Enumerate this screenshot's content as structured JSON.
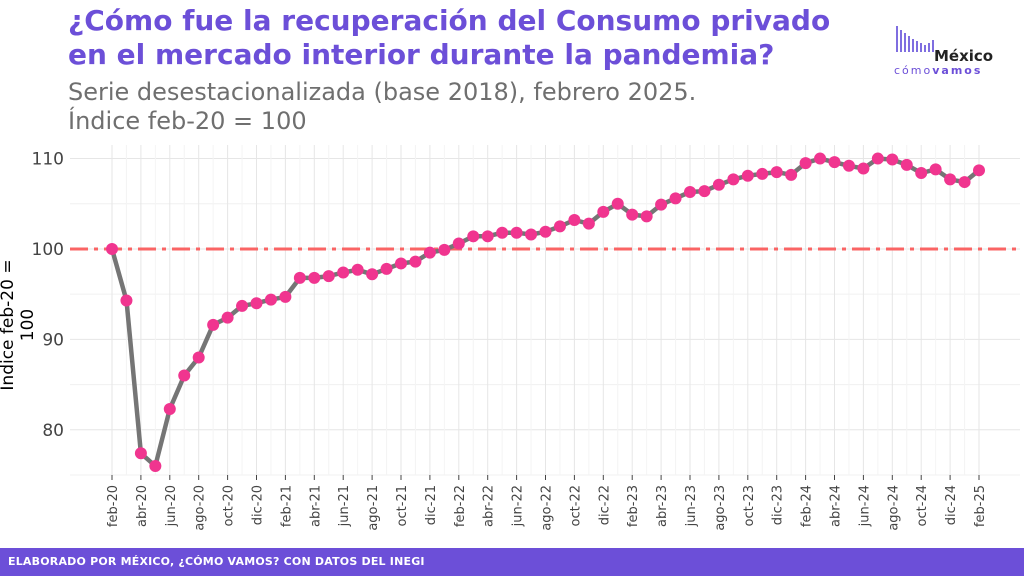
{
  "header": {
    "title": "¿Cómo fue la recuperación del Consumo privado en el mercado interior durante la pandemia?",
    "subtitle_line1": "Serie desestacionalizada (base 2018), febrero 2025.",
    "subtitle_line2": "Índice feb-20 = 100"
  },
  "logo": {
    "word": "México",
    "sub_light": "cómo",
    "sub_bold": "vamos"
  },
  "footer": {
    "text": "ELABORADO POR MÉXICO, ¿CÓMO VAMOS? CON DATOS DEL INEGI"
  },
  "colors": {
    "accent": "#6c4fd8",
    "line": "#757575",
    "points": "#f0358f",
    "reference": "#fa6464"
  },
  "chart_data": {
    "type": "line",
    "title": "¿Cómo fue la recuperación del Consumo privado en el mercado interior durante la pandemia?",
    "ylabel": "Índice feb-20 = 100",
    "xlabel": "",
    "ylim": [
      75,
      111.5
    ],
    "yticks": [
      80,
      90,
      100,
      110
    ],
    "reference_line": 100,
    "grid": true,
    "tick_labels": [
      "feb-20",
      "abr-20",
      "jun-20",
      "ago-20",
      "oct-20",
      "dic-20",
      "feb-21",
      "abr-21",
      "jun-21",
      "ago-21",
      "oct-21",
      "dic-21",
      "feb-22",
      "abr-22",
      "jun-22",
      "ago-22",
      "oct-22",
      "dic-22",
      "feb-23",
      "abr-23",
      "jun-23",
      "ago-23",
      "oct-23",
      "dic-23",
      "feb-24",
      "abr-24",
      "jun-24",
      "ago-24",
      "oct-24",
      "dic-24",
      "feb-25"
    ],
    "x": [
      "feb-20",
      "mar-20",
      "abr-20",
      "may-20",
      "jun-20",
      "jul-20",
      "ago-20",
      "sep-20",
      "oct-20",
      "nov-20",
      "dic-20",
      "ene-21",
      "feb-21",
      "mar-21",
      "abr-21",
      "may-21",
      "jun-21",
      "jul-21",
      "ago-21",
      "sep-21",
      "oct-21",
      "nov-21",
      "dic-21",
      "ene-22",
      "feb-22",
      "mar-22",
      "abr-22",
      "may-22",
      "jun-22",
      "jul-22",
      "ago-22",
      "sep-22",
      "oct-22",
      "nov-22",
      "dic-22",
      "ene-23",
      "feb-23",
      "mar-23",
      "abr-23",
      "may-23",
      "jun-23",
      "jul-23",
      "ago-23",
      "sep-23",
      "oct-23",
      "nov-23",
      "dic-23",
      "ene-24",
      "feb-24",
      "mar-24",
      "abr-24",
      "may-24",
      "jun-24",
      "jul-24",
      "ago-24",
      "sep-24",
      "oct-24",
      "nov-24",
      "dic-24",
      "ene-25",
      "feb-25"
    ],
    "values": [
      100.0,
      94.3,
      77.4,
      76.0,
      82.3,
      86.0,
      88.0,
      91.6,
      92.4,
      93.7,
      94.0,
      94.4,
      94.7,
      96.8,
      96.8,
      97.0,
      97.4,
      97.7,
      97.2,
      97.8,
      98.4,
      98.6,
      99.6,
      99.9,
      100.6,
      101.4,
      101.4,
      101.8,
      101.8,
      101.6,
      101.9,
      102.5,
      103.2,
      102.8,
      104.1,
      105.0,
      103.8,
      103.6,
      104.9,
      105.6,
      106.3,
      106.4,
      107.1,
      107.7,
      108.1,
      108.3,
      108.5,
      108.2,
      109.5,
      110.0,
      109.6,
      109.2,
      108.9,
      110.0,
      109.9,
      109.3,
      108.4,
      108.8,
      107.7,
      107.4,
      108.7
    ]
  }
}
